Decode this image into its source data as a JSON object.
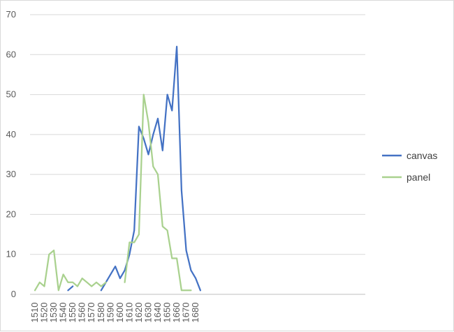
{
  "chart_data": {
    "type": "line",
    "title": "",
    "xlabel": "",
    "ylabel": "",
    "x": [
      1510,
      1515,
      1520,
      1525,
      1530,
      1535,
      1540,
      1545,
      1550,
      1555,
      1560,
      1565,
      1570,
      1575,
      1580,
      1585,
      1590,
      1595,
      1600,
      1605,
      1610,
      1615,
      1620,
      1625,
      1630,
      1635,
      1640,
      1645,
      1650,
      1655,
      1660,
      1665,
      1670,
      1675,
      1680,
      1685
    ],
    "x_tick_labels": [
      "1510",
      "1520",
      "1530",
      "1540",
      "1550",
      "1560",
      "1570",
      "1580",
      "1590",
      "1600",
      "1610",
      "1620",
      "1630",
      "1640",
      "1650",
      "1660",
      "1670",
      "1680"
    ],
    "y_ticks": [
      0,
      10,
      20,
      30,
      40,
      50,
      60,
      70
    ],
    "ylim": [
      0,
      70
    ],
    "grid": "horizontal",
    "legend_position": "right",
    "series": [
      {
        "name": "canvas",
        "color": "#4472c4",
        "values": [
          null,
          null,
          null,
          null,
          null,
          null,
          null,
          1,
          2,
          null,
          null,
          null,
          null,
          null,
          1,
          3,
          5,
          7,
          4,
          6,
          10,
          16,
          42,
          39,
          35,
          40,
          44,
          36,
          50,
          46,
          62,
          26,
          11,
          6,
          4,
          1
        ]
      },
      {
        "name": "panel",
        "color": "#a9d18e",
        "values": [
          1,
          3,
          2,
          10,
          11,
          1,
          5,
          3,
          3,
          2,
          4,
          3,
          2,
          3,
          2,
          3,
          null,
          null,
          null,
          3,
          13,
          13,
          15,
          50,
          43,
          32,
          30,
          17,
          16,
          9,
          9,
          1,
          1,
          1,
          null,
          null
        ]
      }
    ]
  }
}
